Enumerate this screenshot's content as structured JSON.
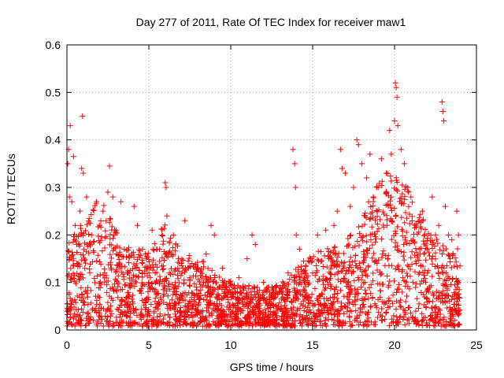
{
  "chart_data": {
    "type": "scatter",
    "title": "Day 277 of 2011, Rate Of TEC Index for receiver maw1",
    "xlabel": "GPS time / hours",
    "ylabel": "ROTI / TECUs",
    "xlim": [
      0,
      25
    ],
    "ylim": [
      0,
      0.6
    ],
    "xticks": [
      0,
      5,
      10,
      15,
      20,
      25
    ],
    "xtick_labels": [
      "0",
      "5",
      "10",
      "15",
      "20",
      "25"
    ],
    "yticks": [
      0,
      0.1,
      0.2,
      0.3,
      0.4,
      0.5,
      0.6
    ],
    "ytick_labels": [
      "0",
      "0.1",
      "0.2",
      "0.3",
      "0.4",
      "0.5",
      "0.6"
    ],
    "grid": true,
    "marker": "plus",
    "color": "#ff0000",
    "series": [
      {
        "points": [
          [
            0.05,
            0.35
          ],
          [
            0.1,
            0.38
          ],
          [
            0.15,
            0.28
          ],
          [
            0.2,
            0.43
          ],
          [
            0.3,
            0.27
          ],
          [
            0.4,
            0.365
          ],
          [
            0.5,
            0.22
          ],
          [
            0.6,
            0.18
          ],
          [
            0.8,
            0.25
          ],
          [
            0.9,
            0.34
          ],
          [
            0.95,
            0.45
          ],
          [
            1.0,
            0.33
          ],
          [
            1.2,
            0.28
          ],
          [
            1.5,
            0.2
          ],
          [
            1.8,
            0.27
          ],
          [
            2.0,
            0.22
          ],
          [
            2.2,
            0.25
          ],
          [
            2.5,
            0.29
          ],
          [
            2.6,
            0.345
          ],
          [
            2.8,
            0.28
          ],
          [
            3.0,
            0.21
          ],
          [
            3.3,
            0.27
          ],
          [
            3.5,
            0.17
          ],
          [
            3.8,
            0.12
          ],
          [
            4.1,
            0.26
          ],
          [
            4.3,
            0.22
          ],
          [
            4.6,
            0.12
          ],
          [
            5.0,
            0.1
          ],
          [
            5.2,
            0.21
          ],
          [
            5.5,
            0.17
          ],
          [
            5.8,
            0.2
          ],
          [
            6.0,
            0.31
          ],
          [
            6.05,
            0.3
          ],
          [
            6.1,
            0.24
          ],
          [
            6.5,
            0.2
          ],
          [
            7.0,
            0.14
          ],
          [
            7.2,
            0.23
          ],
          [
            7.5,
            0.11
          ],
          [
            8.0,
            0.13
          ],
          [
            8.5,
            0.16
          ],
          [
            8.8,
            0.22
          ],
          [
            9.0,
            0.2
          ],
          [
            9.5,
            0.13
          ],
          [
            10.0,
            0.08
          ],
          [
            10.5,
            0.11
          ],
          [
            11.0,
            0.15
          ],
          [
            11.3,
            0.2
          ],
          [
            11.5,
            0.18
          ],
          [
            12.0,
            0.1
          ],
          [
            12.5,
            0.07
          ],
          [
            13.0,
            0.09
          ],
          [
            13.5,
            0.12
          ],
          [
            13.8,
            0.38
          ],
          [
            13.9,
            0.35
          ],
          [
            13.95,
            0.3
          ],
          [
            14.0,
            0.2
          ],
          [
            14.2,
            0.17
          ],
          [
            14.5,
            0.1
          ],
          [
            15.0,
            0.12
          ],
          [
            15.3,
            0.2
          ],
          [
            15.8,
            0.21
          ],
          [
            16.0,
            0.15
          ],
          [
            16.3,
            0.22
          ],
          [
            16.5,
            0.25
          ],
          [
            16.7,
            0.38
          ],
          [
            16.8,
            0.34
          ],
          [
            17.0,
            0.33
          ],
          [
            17.3,
            0.26
          ],
          [
            17.5,
            0.3
          ],
          [
            17.7,
            0.4
          ],
          [
            17.8,
            0.39
          ],
          [
            18.0,
            0.35
          ],
          [
            18.3,
            0.32
          ],
          [
            18.5,
            0.37
          ],
          [
            18.7,
            0.28
          ],
          [
            19.0,
            0.3
          ],
          [
            19.2,
            0.36
          ],
          [
            19.5,
            0.33
          ],
          [
            19.7,
            0.42
          ],
          [
            19.8,
            0.37
          ],
          [
            20.0,
            0.44
          ],
          [
            20.05,
            0.52
          ],
          [
            20.1,
            0.51
          ],
          [
            20.15,
            0.49
          ],
          [
            20.2,
            0.43
          ],
          [
            20.4,
            0.38
          ],
          [
            20.6,
            0.35
          ],
          [
            20.8,
            0.3
          ],
          [
            21.0,
            0.28
          ],
          [
            21.3,
            0.22
          ],
          [
            21.5,
            0.17
          ],
          [
            21.7,
            0.25
          ],
          [
            22.0,
            0.17
          ],
          [
            22.3,
            0.28
          ],
          [
            22.5,
            0.2
          ],
          [
            22.7,
            0.22
          ],
          [
            22.9,
            0.48
          ],
          [
            22.95,
            0.46
          ],
          [
            23.0,
            0.44
          ],
          [
            23.1,
            0.26
          ],
          [
            23.3,
            0.2
          ],
          [
            23.5,
            0.19
          ],
          [
            23.8,
            0.25
          ],
          [
            23.9,
            0.2
          ]
        ]
      }
    ]
  }
}
